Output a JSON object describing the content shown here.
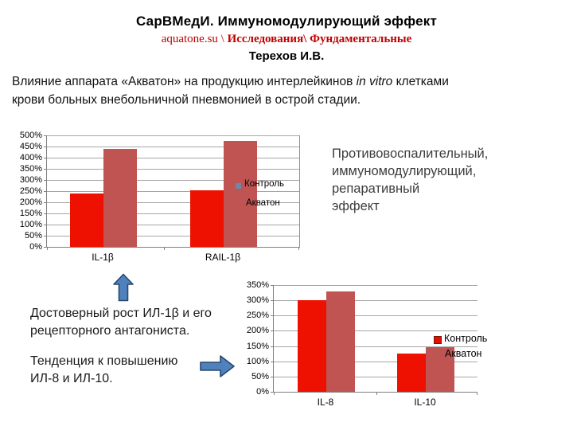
{
  "header": {
    "title": "СарВМедИ. Иммуномодулирующий эффект",
    "subtitle_site": "aquatone.su \\ ",
    "subtitle_path": "Исследования\\ Фундаментальные",
    "author": "Терехов И.В."
  },
  "intro": {
    "part1": "Влияние аппарата «Акватон» на продукцию интерлейкинов  ",
    "part2_italic": "in vitro",
    "part3": "  клетками\nкрови больных  внебольничной пневмонией  в острой стадии."
  },
  "right_note": {
    "text": "Противовоспалительный,\nиммуномодулирующий,\nрепаративный\n эффект"
  },
  "findings": {
    "note1": "Достоверный рост ИЛ-1β и его\nрецепторного антагониста.",
    "note2": "Тенденция к повышению\nИЛ-8 и ИЛ-10."
  },
  "colors": {
    "control_red": "#ee1000",
    "aquaton_dark_red": "#bf5452",
    "legend_marker_blue": "#6b87ab",
    "arrow_blue": "#4f81bd",
    "arrow_border": "#27486e",
    "subtitle_red": "#c00000",
    "gridline_gray": "#a6a6a6"
  },
  "chart_data": [
    {
      "type": "bar",
      "categories": [
        "IL-1β",
        "RAIL-1β"
      ],
      "series": [
        {
          "name": "Контроль",
          "color": "#ee1000",
          "values": [
            240,
            255
          ]
        },
        {
          "name": "Акватон",
          "color": "#bf5452",
          "values": [
            440,
            475
          ]
        }
      ],
      "title": "",
      "xlabel": "",
      "ylabel": "",
      "unit": "%",
      "ylim": [
        0,
        500
      ],
      "ytick_step": 50,
      "ytick_labels": [
        "500%",
        "450%",
        "400%",
        "350%",
        "300%",
        "250%",
        "200%",
        "150%",
        "100%",
        "50%",
        "0%"
      ],
      "grid": true,
      "legend_position": "inside-right"
    },
    {
      "type": "bar",
      "categories": [
        "IL-8",
        "IL-10"
      ],
      "series": [
        {
          "name": "Контроль",
          "color": "#ee1000",
          "values": [
            300,
            125
          ]
        },
        {
          "name": "Акватон",
          "color": "#bf5452",
          "values": [
            330,
            145
          ]
        }
      ],
      "title": "",
      "xlabel": "",
      "ylabel": "",
      "unit": "%",
      "ylim": [
        0,
        350
      ],
      "ytick_step": 50,
      "ytick_labels": [
        "350%",
        "300%",
        "250%",
        "200%",
        "150%",
        "100%",
        "50%",
        "0%"
      ],
      "grid": true,
      "legend_position": "inside-right"
    }
  ]
}
